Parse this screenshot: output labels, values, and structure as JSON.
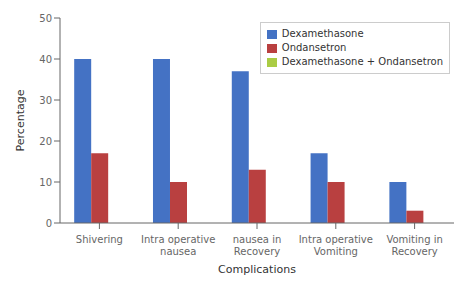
{
  "chart_data": {
    "type": "bar",
    "categories": [
      "Shivering",
      "Intra operative\nnausea",
      "nausea in\nRecovery",
      "Intra operative\nVomiting",
      "Vomiting in\nRecovery"
    ],
    "series": [
      {
        "name": "Dexamethasone",
        "color": "#4472C4",
        "values": [
          40,
          40,
          37,
          17,
          10
        ]
      },
      {
        "name": "Ondansetron",
        "color": "#B94040",
        "values": [
          17,
          10,
          13,
          10,
          3
        ]
      },
      {
        "name": "Dexamethasone + Ondansetron",
        "color": "#AACC44",
        "values": [
          0,
          0,
          0,
          0,
          0
        ]
      }
    ],
    "xlabel": "Complications",
    "ylabel": "Percentage",
    "ylim": [
      0,
      50
    ],
    "yticks": [
      0,
      10,
      20,
      30,
      40,
      50
    ],
    "grid": false,
    "legend": "upper right"
  }
}
